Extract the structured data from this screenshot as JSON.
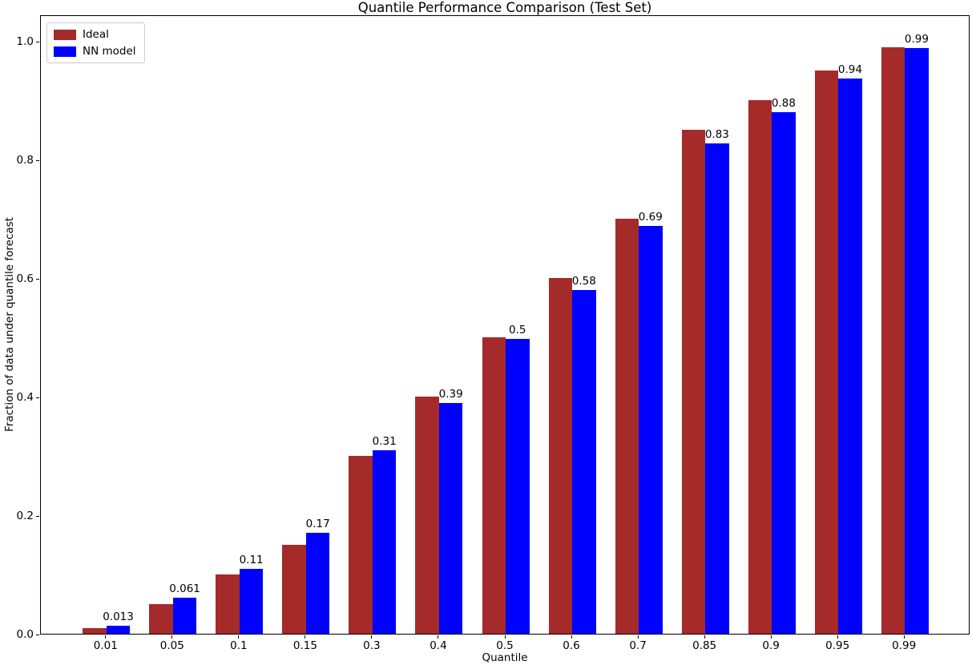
{
  "chart_data": {
    "type": "bar",
    "title": "Quantile Performance Comparison (Test Set)",
    "xlabel": "Quantile",
    "ylabel": "Fraction of data under quantile forecast",
    "categories": [
      "0.01",
      "0.05",
      "0.1",
      "0.15",
      "0.3",
      "0.4",
      "0.5",
      "0.6",
      "0.7",
      "0.85",
      "0.9",
      "0.95",
      "0.99"
    ],
    "series": [
      {
        "name": "Ideal",
        "color": "#A52A2A",
        "values": [
          0.01,
          0.05,
          0.1,
          0.15,
          0.3,
          0.4,
          0.5,
          0.6,
          0.7,
          0.85,
          0.9,
          0.95,
          0.99
        ]
      },
      {
        "name": "NN model",
        "color": "#0000FF",
        "values": [
          0.013,
          0.061,
          0.11,
          0.17,
          0.31,
          0.39,
          0.497,
          0.58,
          0.688,
          0.828,
          0.88,
          0.937,
          0.988
        ]
      }
    ],
    "bar_labels": [
      "0.013",
      "0.061",
      "0.11",
      "0.17",
      "0.31",
      "0.39",
      "0.5",
      "0.58",
      "0.69",
      "0.83",
      "0.88",
      "0.94",
      "0.99"
    ],
    "yticks": [
      "0.0",
      "0.2",
      "0.4",
      "0.6",
      "0.8",
      "1.0"
    ],
    "ylim": [
      0,
      1.045
    ],
    "legend_position": "upper-left",
    "grid": false,
    "background": "#ffffff"
  }
}
